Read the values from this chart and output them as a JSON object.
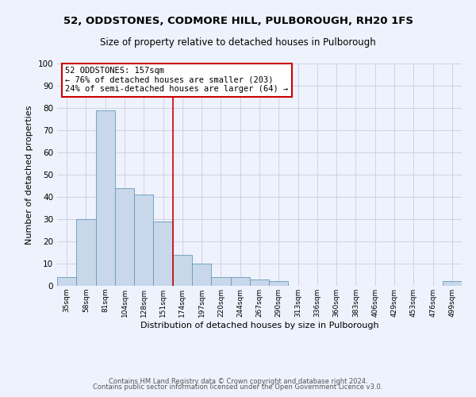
{
  "title": "52, ODDSTONES, CODMORE HILL, PULBOROUGH, RH20 1FS",
  "subtitle": "Size of property relative to detached houses in Pulborough",
  "xlabel": "Distribution of detached houses by size in Pulborough",
  "ylabel": "Number of detached properties",
  "bar_values": [
    4,
    30,
    79,
    44,
    41,
    29,
    14,
    10,
    4,
    4,
    3,
    2,
    0,
    0,
    0,
    0,
    0,
    0,
    0,
    0,
    2
  ],
  "tick_labels": [
    "35sqm",
    "58sqm",
    "81sqm",
    "104sqm",
    "128sqm",
    "151sqm",
    "174sqm",
    "197sqm",
    "220sqm",
    "244sqm",
    "267sqm",
    "290sqm",
    "313sqm",
    "336sqm",
    "360sqm",
    "383sqm",
    "406sqm",
    "429sqm",
    "453sqm",
    "476sqm",
    "499sqm"
  ],
  "bar_color": "#c8d8ea",
  "bar_edge_color": "#6699bb",
  "grid_color": "#ccccdd",
  "bg_color": "#eef2fc",
  "vline_x": 5.5,
  "vline_color": "#cc0000",
  "annotation_title": "52 ODDSTONES: 157sqm",
  "annotation_line1": "← 76% of detached houses are smaller (203)",
  "annotation_line2": "24% of semi-detached houses are larger (64) →",
  "annotation_box_color": "#ffffff",
  "annotation_box_edge": "#cc0000",
  "footer1": "Contains HM Land Registry data © Crown copyright and database right 2024.",
  "footer2": "Contains public sector information licensed under the Open Government Licence v3.0.",
  "ylim": [
    0,
    100
  ],
  "title_fontsize": 9.5,
  "subtitle_fontsize": 8.5,
  "xlabel_fontsize": 8,
  "ylabel_fontsize": 8
}
